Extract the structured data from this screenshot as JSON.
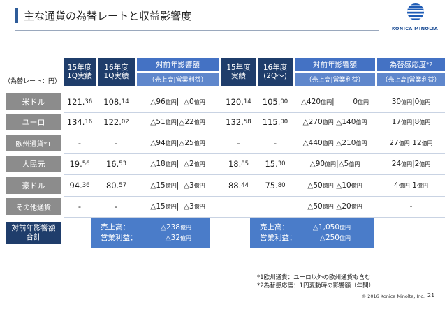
{
  "title": "主な通貨の為替レートと収益影響度",
  "logo": {
    "text": "KONICA MINOLTA",
    "color": "#1e4f96"
  },
  "unit_label": "（為替レート：円）",
  "headers": {
    "fy15q1": "15年度\n1Q実績",
    "fy16q1": "16年度\n1Q実績",
    "impact1_top": "対前年影響額",
    "impact1_sub": "（売上高|営業利益）",
    "fy15": "15年度\n実績",
    "fy16": "16年度\n(2Q～)",
    "impact2_top": "対前年影響額",
    "impact2_sub": "（売上高|営業利益）",
    "sens_top": "為替感応度",
    "sens_sup": "*2",
    "sens_sub": "（売上高|営業利益）"
  },
  "rows": [
    {
      "label": "米ドル",
      "a_int": "121.",
      "a_dec": "36",
      "b_int": "108.",
      "b_dec": "14",
      "i1_s": "△96",
      "i1_su": "億円",
      "i1_o": "|  △0",
      "i1_ou": "億円",
      "c_int": "120.",
      "c_dec": "14",
      "d_int": "105.",
      "d_dec": "00",
      "i2_s": "△420",
      "i2_su": "億円",
      "i2_o": "|        0",
      "i2_ou": "億円",
      "s_s": "30",
      "s_su": "億円",
      "s_o": "|0",
      "s_ou": "億円"
    },
    {
      "label": "ユーロ",
      "a_int": "134.",
      "a_dec": "16",
      "b_int": "122.",
      "b_dec": "02",
      "i1_s": "△51",
      "i1_su": "億円",
      "i1_o": "|△22",
      "i1_ou": "億円",
      "c_int": "132.",
      "c_dec": "58",
      "d_int": "115.",
      "d_dec": "00",
      "i2_s": "△270",
      "i2_su": "億円",
      "i2_o": "|△140",
      "i2_ou": "億円",
      "s_s": "17",
      "s_su": "億円",
      "s_o": "|8",
      "s_ou": "億円"
    },
    {
      "label": "欧州通貨*1",
      "a_int": "-",
      "a_dec": "",
      "b_int": "-",
      "b_dec": "",
      "i1_s": "△94",
      "i1_su": "億円",
      "i1_o": "|△25",
      "i1_ou": "億円",
      "c_int": "-",
      "c_dec": "",
      "d_int": "-",
      "d_dec": "",
      "i2_s": "△440",
      "i2_su": "億円",
      "i2_o": "|△210",
      "i2_ou": "億円",
      "s_s": "27",
      "s_su": "億円",
      "s_o": "|12",
      "s_ou": "億円"
    },
    {
      "label": "人民元",
      "a_int": "19.",
      "a_dec": "56",
      "b_int": "16.",
      "b_dec": "53",
      "i1_s": "△18",
      "i1_su": "億円",
      "i1_o": "|  △2",
      "i1_ou": "億円",
      "c_int": "18.",
      "c_dec": "85",
      "d_int": "15.",
      "d_dec": "30",
      "i2_s": "△90",
      "i2_su": "億円",
      "i2_o": "|△5",
      "i2_ou": "億円",
      "s_s": "24",
      "s_su": "億円",
      "s_o": "|2",
      "s_ou": "億円"
    },
    {
      "label": "豪ドル",
      "a_int": "94.",
      "a_dec": "36",
      "b_int": "80.",
      "b_dec": "57",
      "i1_s": "△15",
      "i1_su": "億円",
      "i1_o": "|  △3",
      "i1_ou": "億円",
      "c_int": "88.",
      "c_dec": "44",
      "d_int": "75.",
      "d_dec": "80",
      "i2_s": "△50",
      "i2_su": "億円",
      "i2_o": "|△10",
      "i2_ou": "億円",
      "s_s": "4",
      "s_su": "億円",
      "s_o": "|1",
      "s_ou": "億円"
    },
    {
      "label": "その他通貨",
      "a_int": "-",
      "a_dec": "",
      "b_int": "-",
      "b_dec": "",
      "i1_s": "△15",
      "i1_su": "億円",
      "i1_o": "|  △3",
      "i1_ou": "億円",
      "c_int": "",
      "c_dec": "",
      "d_int": "",
      "d_dec": "",
      "i2_s": "△50",
      "i2_su": "億円",
      "i2_o": "|△20",
      "i2_ou": "億円",
      "s_s": "-",
      "s_su": "",
      "s_o": "",
      "s_ou": ""
    }
  ],
  "total": {
    "label": "対前年影響額\n合計",
    "left": {
      "sales_label": "売上高：",
      "sales": "△238",
      "sales_unit": "億円",
      "op_label": "営業利益：",
      "op": "△32",
      "op_unit": "億円"
    },
    "right": {
      "sales_label": "売上高：",
      "sales": "△1,050",
      "sales_unit": "億円",
      "op_label": "営業利益：",
      "op": "△250",
      "op_unit": "億円"
    }
  },
  "notes": [
    "*1欧州通貨：ユーロ以外の欧州通貨も含む",
    "*2為替感応度：1円変動時の影響額（年間）"
  ],
  "footer": "© 2016 Konica Minolta, Inc.",
  "page_number": "21"
}
